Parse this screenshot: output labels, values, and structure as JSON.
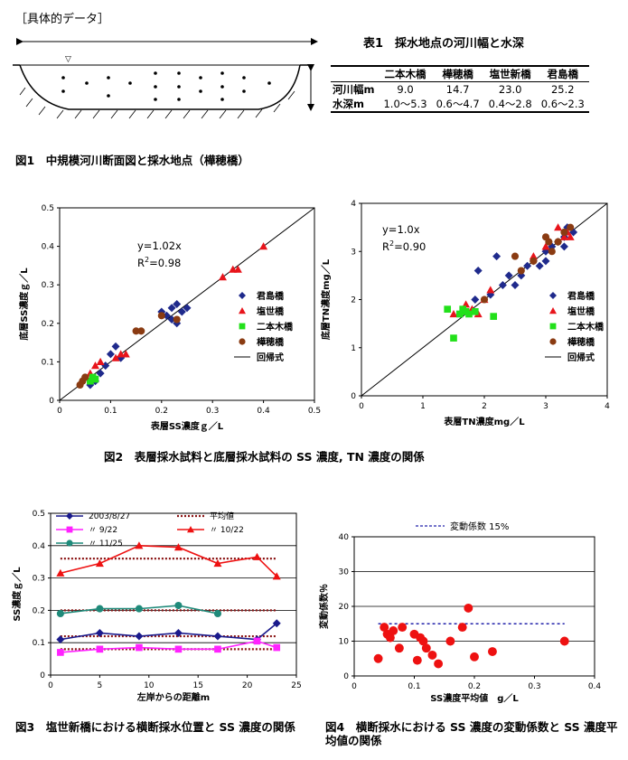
{
  "header": {
    "label": "［具体的データ］"
  },
  "table1": {
    "title": "表1　採水地点の河川幅と水深",
    "columns": [
      "",
      "二本木橋",
      "樺穂橋",
      "塩世新橋",
      "君島橋"
    ],
    "rows": [
      {
        "label": "河川幅m",
        "cells": [
          "9.0",
          "14.7",
          "23.0",
          "25.2"
        ]
      },
      {
        "label": "水深m",
        "cells": [
          "1.0～5.3",
          "0.6～4.7",
          "0.4～2.8",
          "0.6～2.3"
        ]
      }
    ]
  },
  "fig1": {
    "caption": "図1　中規模河川断面図と採水地点（樺穂橋）",
    "water_symbol": "▽"
  },
  "fig2": {
    "caption": "図2　表層採水試料と底層採水試料の SS 濃度, TN 濃度の関係"
  },
  "fig3": {
    "caption": "図3　塩世新橋における横断採水位置と SS 濃度の関係"
  },
  "fig4": {
    "caption": "図4　横断採水における SS 濃度の変動係数と SS 濃度平均値の関係"
  },
  "chart_data": [
    {
      "id": "fig2-left",
      "type": "scatter",
      "xlabel": "表層SS濃度ｇ／L",
      "ylabel": "底層SS濃度ｇ／L",
      "xlim": [
        0,
        0.5
      ],
      "ylim": [
        0,
        0.5
      ],
      "xticks": [
        "0",
        "0.1",
        "0.2",
        "0.3",
        "0.4",
        "0.5"
      ],
      "yticks": [
        "0",
        "0.1",
        "0.2",
        "0.3",
        "0.4",
        "0.5"
      ],
      "annotation": {
        "eq": "y=1.02x",
        "r2_prefix": "R",
        "r2_sup": "2",
        "r2_value": "=0.98"
      },
      "legend": [
        "君島橋",
        "塩世橋",
        "二本木橋",
        "樺穂橋",
        "回帰式"
      ],
      "regression": {
        "slope": 1.02
      },
      "series": [
        {
          "name": "君島橋",
          "marker": "diamond",
          "color": "#1f2a8c",
          "points": [
            [
              0.06,
              0.04
            ],
            [
              0.07,
              0.05
            ],
            [
              0.08,
              0.07
            ],
            [
              0.09,
              0.09
            ],
            [
              0.1,
              0.12
            ],
            [
              0.11,
              0.14
            ],
            [
              0.12,
              0.11
            ],
            [
              0.2,
              0.23
            ],
            [
              0.21,
              0.22
            ],
            [
              0.22,
              0.24
            ],
            [
              0.23,
              0.25
            ],
            [
              0.24,
              0.23
            ],
            [
              0.25,
              0.24
            ],
            [
              0.22,
              0.21
            ],
            [
              0.23,
              0.2
            ]
          ]
        },
        {
          "name": "塩世橋",
          "marker": "triangle",
          "color": "#e8141b",
          "points": [
            [
              0.06,
              0.07
            ],
            [
              0.07,
              0.09
            ],
            [
              0.08,
              0.1
            ],
            [
              0.11,
              0.11
            ],
            [
              0.12,
              0.12
            ],
            [
              0.13,
              0.12
            ],
            [
              0.32,
              0.32
            ],
            [
              0.34,
              0.34
            ],
            [
              0.35,
              0.34
            ],
            [
              0.4,
              0.4
            ]
          ]
        },
        {
          "name": "二本木橋",
          "marker": "square",
          "color": "#22e01a",
          "points": [
            [
              0.06,
              0.05
            ],
            [
              0.065,
              0.06
            ],
            [
              0.07,
              0.055
            ]
          ]
        },
        {
          "name": "樺穂橋",
          "marker": "circle",
          "color": "#8a3b12",
          "points": [
            [
              0.04,
              0.04
            ],
            [
              0.045,
              0.05
            ],
            [
              0.05,
              0.06
            ],
            [
              0.15,
              0.18
            ],
            [
              0.16,
              0.18
            ],
            [
              0.2,
              0.22
            ],
            [
              0.23,
              0.21
            ]
          ]
        }
      ]
    },
    {
      "id": "fig2-right",
      "type": "scatter",
      "xlabel": "表層TN濃度mg／L",
      "ylabel": "底層TN濃度mg／L",
      "xlim": [
        0,
        4
      ],
      "ylim": [
        0,
        4
      ],
      "xticks": [
        "0",
        "1",
        "2",
        "3",
        "4"
      ],
      "yticks": [
        "0",
        "1",
        "2",
        "3",
        "4"
      ],
      "annotation": {
        "eq": "y=1.0x",
        "r2_prefix": "R",
        "r2_sup": "2",
        "r2_value": "=0.90"
      },
      "legend": [
        "君島橋",
        "塩世橋",
        "二本木橋",
        "樺穂橋",
        "回帰式"
      ],
      "regression": {
        "slope": 1.0
      },
      "series": [
        {
          "name": "君島橋",
          "marker": "diamond",
          "color": "#1f2a8c",
          "points": [
            [
              1.9,
              2.6
            ],
            [
              1.85,
              2.0
            ],
            [
              2.1,
              2.1
            ],
            [
              2.2,
              2.9
            ],
            [
              2.3,
              2.3
            ],
            [
              2.4,
              2.5
            ],
            [
              2.5,
              2.3
            ],
            [
              2.6,
              2.5
            ],
            [
              2.7,
              2.7
            ],
            [
              2.8,
              2.8
            ],
            [
              2.9,
              2.7
            ],
            [
              3.0,
              2.8
            ],
            [
              3.0,
              3.0
            ],
            [
              3.1,
              3.1
            ],
            [
              3.2,
              3.2
            ],
            [
              3.3,
              3.3
            ],
            [
              3.35,
              3.5
            ],
            [
              3.45,
              3.4
            ],
            [
              3.3,
              3.1
            ]
          ]
        },
        {
          "name": "塩世橋",
          "marker": "triangle",
          "color": "#e8141b",
          "points": [
            [
              1.5,
              1.7
            ],
            [
              1.7,
              1.9
            ],
            [
              1.8,
              1.8
            ],
            [
              1.9,
              1.7
            ],
            [
              2.0,
              2.0
            ],
            [
              2.1,
              2.2
            ],
            [
              2.8,
              2.9
            ],
            [
              3.0,
              3.1
            ],
            [
              3.2,
              3.5
            ],
            [
              3.3,
              3.3
            ],
            [
              3.35,
              3.4
            ],
            [
              3.4,
              3.3
            ]
          ]
        },
        {
          "name": "二本木橋",
          "marker": "square",
          "color": "#22e01a",
          "points": [
            [
              1.4,
              1.8
            ],
            [
              1.5,
              1.2
            ],
            [
              1.6,
              1.7
            ],
            [
              1.65,
              1.8
            ],
            [
              1.7,
              1.75
            ],
            [
              1.75,
              1.7
            ],
            [
              1.85,
              1.75
            ],
            [
              2.15,
              1.65
            ]
          ]
        },
        {
          "name": "樺穂橋",
          "marker": "circle",
          "color": "#8a3b12",
          "points": [
            [
              2.0,
              2.0
            ],
            [
              2.5,
              2.9
            ],
            [
              2.6,
              2.6
            ],
            [
              2.8,
              2.8
            ],
            [
              3.0,
              3.3
            ],
            [
              3.05,
              3.2
            ],
            [
              3.1,
              3.0
            ],
            [
              3.2,
              3.2
            ],
            [
              3.3,
              3.4
            ],
            [
              3.4,
              3.5
            ]
          ]
        }
      ]
    },
    {
      "id": "fig3",
      "type": "line",
      "xlabel": "左岸からの距離m",
      "ylabel": "SS濃度ｇ／L",
      "xlim": [
        0,
        25
      ],
      "ylim": [
        0,
        0.5
      ],
      "xticks": [
        "0",
        "5",
        "10",
        "15",
        "20",
        "25"
      ],
      "yticks": [
        "0",
        "0.1",
        "0.2",
        "0.3",
        "0.4",
        "0.5"
      ],
      "legend_avg": "平均値",
      "series": [
        {
          "name": "2003/8/27",
          "marker": "diamond",
          "color": "#1a1a8c",
          "avg": 0.12,
          "x": [
            1,
            5,
            9,
            13,
            17,
            21,
            23
          ],
          "values": [
            0.11,
            0.13,
            0.12,
            0.13,
            0.12,
            0.11,
            0.16
          ]
        },
        {
          "name": "〃 9/22",
          "marker": "square",
          "color": "#ff22ff",
          "avg": 0.08,
          "x": [
            1,
            5,
            9,
            13,
            17,
            21,
            23
          ],
          "values": [
            0.07,
            0.08,
            0.085,
            0.08,
            0.08,
            0.105,
            0.085
          ]
        },
        {
          "name": "〃 10/22",
          "marker": "triangle",
          "color": "#ee1111",
          "avg": 0.36,
          "x": [
            1,
            5,
            9,
            13,
            17,
            21,
            23
          ],
          "values": [
            0.315,
            0.345,
            0.4,
            0.395,
            0.345,
            0.365,
            0.305
          ]
        },
        {
          "name": "〃 11/25",
          "marker": "circle",
          "color": "#1f8a7a",
          "avg": 0.2,
          "x": [
            1,
            5,
            9,
            13,
            17
          ],
          "values": [
            0.19,
            0.205,
            0.205,
            0.215,
            0.19
          ]
        }
      ]
    },
    {
      "id": "fig4",
      "type": "scatter",
      "xlabel": "SS濃度平均値　g／L",
      "ylabel": "変動係数％",
      "xlim": [
        0,
        0.4
      ],
      "ylim": [
        0,
        40
      ],
      "xticks": [
        "0",
        "0.1",
        "0.2",
        "0.3",
        "0.4"
      ],
      "yticks": [
        "0",
        "10",
        "20",
        "30",
        "40"
      ],
      "legend": "変動係数 15%",
      "reference_line": 15,
      "series": [
        {
          "name": "SS",
          "marker": "circle",
          "color": "#ee1111",
          "points": [
            [
              0.04,
              5
            ],
            [
              0.05,
              14
            ],
            [
              0.055,
              12
            ],
            [
              0.06,
              11
            ],
            [
              0.065,
              13
            ],
            [
              0.075,
              8
            ],
            [
              0.08,
              14
            ],
            [
              0.1,
              12
            ],
            [
              0.105,
              4.5
            ],
            [
              0.11,
              11
            ],
            [
              0.115,
              10
            ],
            [
              0.12,
              8
            ],
            [
              0.13,
              6
            ],
            [
              0.14,
              3.5
            ],
            [
              0.16,
              10
            ],
            [
              0.18,
              14
            ],
            [
              0.19,
              19.5
            ],
            [
              0.2,
              5.5
            ],
            [
              0.23,
              7
            ],
            [
              0.35,
              10
            ]
          ]
        }
      ]
    }
  ]
}
